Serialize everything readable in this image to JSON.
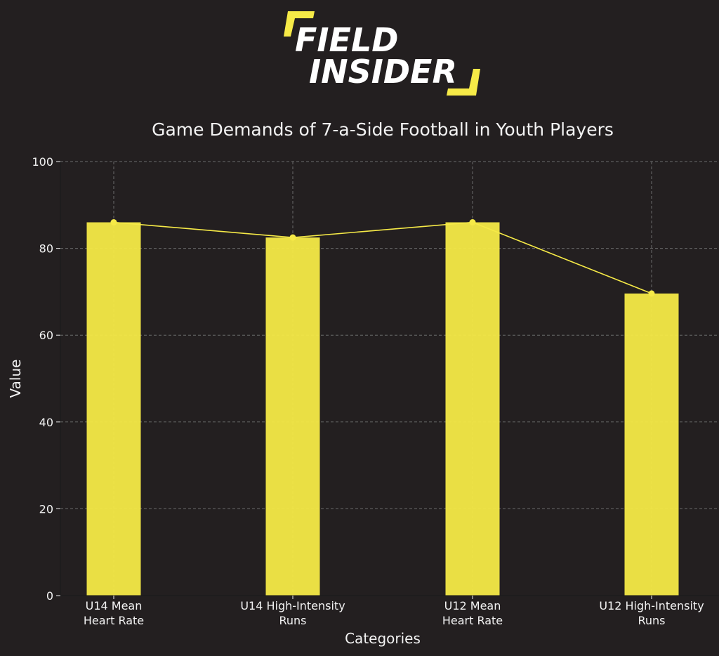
{
  "brand": {
    "logo_line1": "FIELD",
    "logo_line2": "INSIDER",
    "accent_color": "#f6ea47",
    "background_color": "#231f20"
  },
  "chart_data": {
    "type": "bar",
    "title": "Game Demands of 7-a-Side Football in Youth Players",
    "xlabel": "Categories",
    "ylabel": "Value",
    "categories": [
      [
        "U14 Mean",
        "Heart Rate"
      ],
      [
        "U14 High-Intensity",
        "Runs"
      ],
      [
        "U12 Mean",
        "Heart Rate"
      ],
      [
        "U12 High-Intensity",
        "Runs"
      ]
    ],
    "values": [
      86,
      82.5,
      86,
      69.6
    ],
    "overlay_line": true,
    "ylim": [
      0,
      100
    ],
    "yticks": [
      "0",
      "20",
      "40",
      "60",
      "80",
      "100"
    ],
    "ytick_values": [
      0,
      20,
      40,
      60,
      80,
      100
    ],
    "grid": true,
    "bar_color": "#f6ea47",
    "line_color": "#f6ea47"
  }
}
